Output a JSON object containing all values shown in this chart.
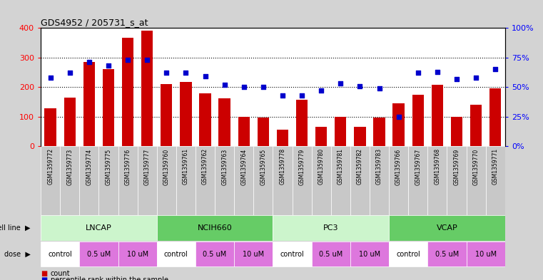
{
  "title": "GDS4952 / 205731_s_at",
  "samples": [
    "GSM1359772",
    "GSM1359773",
    "GSM1359774",
    "GSM1359775",
    "GSM1359776",
    "GSM1359777",
    "GSM1359760",
    "GSM1359761",
    "GSM1359762",
    "GSM1359763",
    "GSM1359764",
    "GSM1359765",
    "GSM1359778",
    "GSM1359779",
    "GSM1359780",
    "GSM1359781",
    "GSM1359782",
    "GSM1359783",
    "GSM1359766",
    "GSM1359767",
    "GSM1359768",
    "GSM1359769",
    "GSM1359770",
    "GSM1359771"
  ],
  "counts": [
    128,
    165,
    285,
    260,
    368,
    390,
    210,
    218,
    180,
    163,
    100,
    98,
    57,
    158,
    66,
    100,
    67,
    98,
    145,
    175,
    207,
    100,
    140,
    197
  ],
  "percentiles": [
    58,
    62,
    71,
    68,
    73,
    73,
    62,
    62,
    59,
    52,
    50,
    50,
    43,
    43,
    47,
    53,
    51,
    49,
    25,
    62,
    63,
    57,
    58,
    65
  ],
  "cell_lines": [
    {
      "name": "LNCAP",
      "start": 0,
      "end": 6,
      "color": "#ccf5cc"
    },
    {
      "name": "NCIH660",
      "start": 6,
      "end": 12,
      "color": "#66cc66"
    },
    {
      "name": "PC3",
      "start": 12,
      "end": 18,
      "color": "#ccf5cc"
    },
    {
      "name": "VCAP",
      "start": 18,
      "end": 24,
      "color": "#66cc66"
    }
  ],
  "dose_blocks": [
    {
      "label": "control",
      "start": 0,
      "end": 2,
      "color": "#ffffff"
    },
    {
      "label": "0.5 uM",
      "start": 2,
      "end": 4,
      "color": "#dd77dd"
    },
    {
      "label": "10 uM",
      "start": 4,
      "end": 6,
      "color": "#dd77dd"
    },
    {
      "label": "control",
      "start": 6,
      "end": 8,
      "color": "#ffffff"
    },
    {
      "label": "0.5 uM",
      "start": 8,
      "end": 10,
      "color": "#dd77dd"
    },
    {
      "label": "10 uM",
      "start": 10,
      "end": 12,
      "color": "#dd77dd"
    },
    {
      "label": "control",
      "start": 12,
      "end": 14,
      "color": "#ffffff"
    },
    {
      "label": "0.5 uM",
      "start": 14,
      "end": 16,
      "color": "#dd77dd"
    },
    {
      "label": "10 uM",
      "start": 16,
      "end": 18,
      "color": "#dd77dd"
    },
    {
      "label": "control",
      "start": 18,
      "end": 20,
      "color": "#ffffff"
    },
    {
      "label": "0.5 uM",
      "start": 20,
      "end": 22,
      "color": "#dd77dd"
    },
    {
      "label": "10 uM",
      "start": 22,
      "end": 24,
      "color": "#dd77dd"
    }
  ],
  "bar_color": "#cc0000",
  "scatter_color": "#0000cc",
  "left_ylim": [
    0,
    400
  ],
  "right_ylim": [
    0,
    100
  ],
  "left_yticks": [
    0,
    100,
    200,
    300,
    400
  ],
  "right_yticks": [
    0,
    25,
    50,
    75,
    100
  ],
  "right_yticklabels": [
    "0%",
    "25%",
    "50%",
    "75%",
    "100%"
  ],
  "background_color": "#d3d3d3",
  "plot_bg_color": "#ffffff",
  "xtick_bg_color": "#c8c8c8",
  "legend_count_color": "#cc0000",
  "legend_percentile_color": "#0000cc"
}
